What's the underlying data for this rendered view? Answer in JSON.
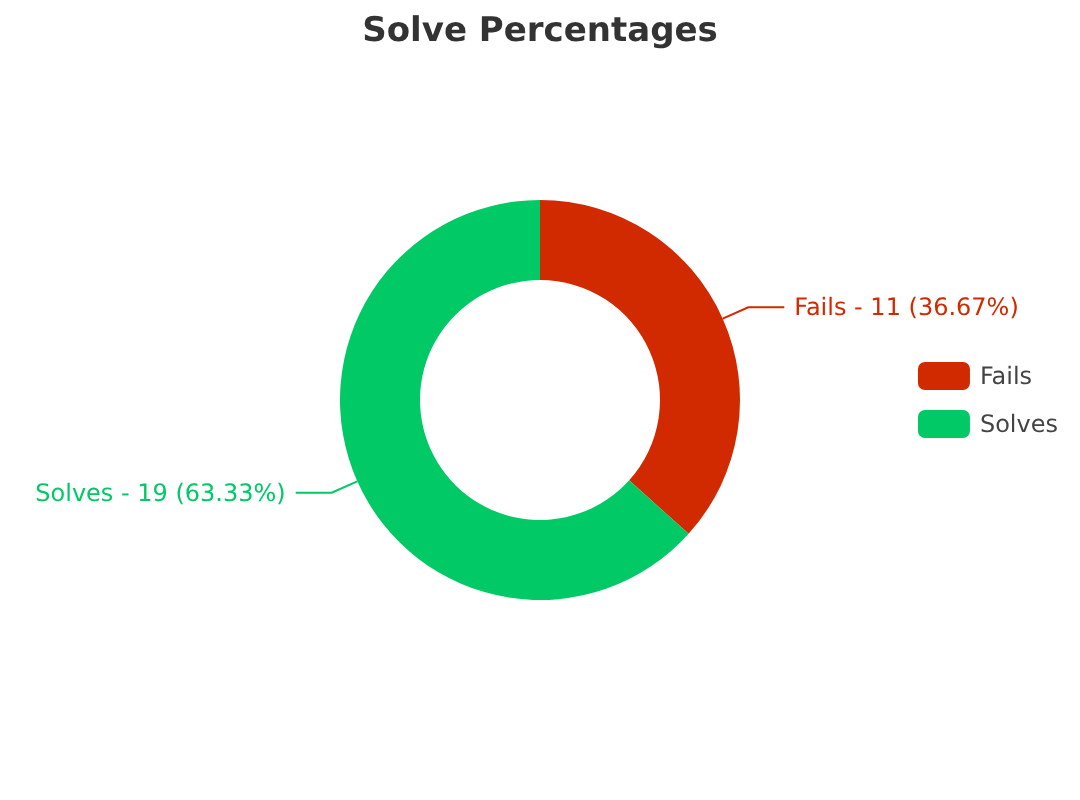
{
  "chart_data": {
    "type": "donut",
    "title": "Solve Percentages",
    "categories": [
      "Fails",
      "Solves"
    ],
    "values": [
      36.67,
      63.33
    ],
    "colors": [
      "#d12a00",
      "#00c965"
    ],
    "value_labels": [
      "Fails - 11 (36.67%)",
      "Solves - 19 (63.33%)"
    ],
    "legend": "right"
  }
}
